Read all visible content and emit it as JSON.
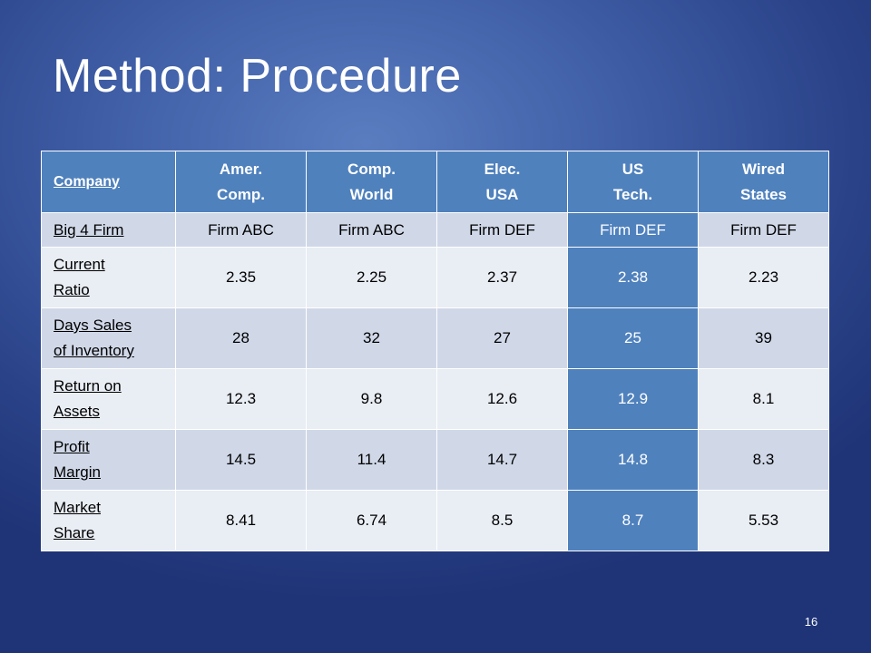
{
  "title": "Method: Procedure",
  "page_number": "16",
  "table": {
    "header": {
      "label": "Company",
      "columns": [
        {
          "line1": "Amer.",
          "line2": "Comp."
        },
        {
          "line1": "Comp.",
          "line2": "World"
        },
        {
          "line1": "Elec.",
          "line2": "USA"
        },
        {
          "line1": "US",
          "line2": "Tech."
        },
        {
          "line1": "Wired",
          "line2": "States"
        }
      ]
    },
    "rows": [
      {
        "label1": "Big 4 Firm",
        "label2": "",
        "values": [
          "Firm ABC",
          "Firm ABC",
          "Firm DEF",
          "Firm DEF",
          "Firm DEF"
        ]
      },
      {
        "label1": "Current",
        "label2": "Ratio",
        "values": [
          "2.35",
          "2.25",
          "2.37",
          "2.38",
          "2.23"
        ]
      },
      {
        "label1": "Days Sales",
        "label2": "of Inventory",
        "values": [
          "28",
          "32",
          "27",
          "25",
          "39"
        ]
      },
      {
        "label1": "Return on",
        "label2": "Assets",
        "values": [
          "12.3",
          "9.8",
          "12.6",
          "12.9",
          "8.1"
        ]
      },
      {
        "label1": "Profit",
        "label2": "Margin",
        "values": [
          "14.5",
          "11.4",
          "14.7",
          "14.8",
          "8.3"
        ]
      },
      {
        "label1": "Market",
        "label2": "Share",
        "values": [
          "8.41",
          "6.74",
          "8.5",
          "8.7",
          "5.53"
        ]
      }
    ],
    "highlight_column": "US Tech.",
    "colors": {
      "header": "#4f81bd",
      "row_odd": "#d0d8e8",
      "row_even": "#e9edf4",
      "highlight": "#4f81bd"
    }
  }
}
